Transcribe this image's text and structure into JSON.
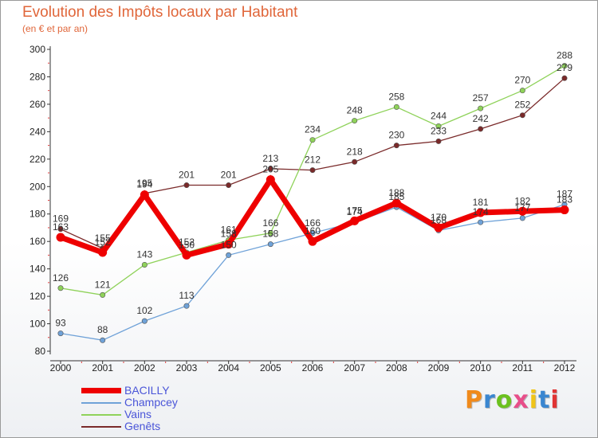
{
  "header": {
    "title": "Evolution des Impôts locaux par Habitant",
    "subtitle": "(en € et par an)"
  },
  "logo": {
    "text": "Proxiti",
    "colors": [
      "#f08a1c",
      "#3a86d0",
      "#6cc11f",
      "#e84e8a",
      "#f0c419",
      "#3a86d0",
      "#e03434"
    ]
  },
  "chart_data": {
    "type": "line",
    "title": "Evolution des Impôts locaux par Habitant",
    "subtitle": "(en € et par an)",
    "xlabel": "",
    "ylabel": "",
    "x": [
      "2000",
      "2001",
      "2002",
      "2003",
      "2004",
      "2005",
      "2006",
      "2007",
      "2008",
      "2009",
      "2010",
      "2011",
      "2012"
    ],
    "ylim": [
      80,
      300
    ],
    "yticks": [
      "80",
      "100",
      "120",
      "140",
      "160",
      "180",
      "200",
      "220",
      "240",
      "260",
      "280",
      "300"
    ],
    "legend_position": "bottom-left",
    "grid": false,
    "series": [
      {
        "name": "BACILLY",
        "color": "#ee0000",
        "values": [
          163,
          152,
          194,
          150,
          158,
          205,
          160,
          175,
          188,
          170,
          181,
          182,
          183
        ],
        "labels": [
          "163",
          "152",
          "194",
          "150",
          "158",
          "205",
          "160",
          "175",
          "188",
          "170",
          "181",
          "182",
          "183"
        ]
      },
      {
        "name": "Champcey",
        "color": "#6fa2d8",
        "values": [
          93,
          88,
          102,
          113,
          150,
          158,
          166,
          174,
          185,
          168,
          174,
          177,
          187
        ],
        "labels": [
          "93",
          "88",
          "102",
          "113",
          "150",
          "158",
          "166",
          "174",
          "185",
          "168",
          "174",
          "177",
          "187"
        ]
      },
      {
        "name": "Vains",
        "color": "#8fd25a",
        "values": [
          126,
          121,
          143,
          152,
          161,
          166,
          234,
          248,
          258,
          244,
          257,
          270,
          288
        ],
        "labels": [
          "126",
          "121",
          "143",
          "152",
          "161",
          "166",
          "234",
          "248",
          "258",
          "244",
          "257",
          "270",
          "288"
        ]
      },
      {
        "name": "Genêts",
        "color": "#7a2a2a",
        "values": [
          169,
          155,
          195,
          201,
          201,
          213,
          212,
          218,
          230,
          233,
          242,
          252,
          279
        ],
        "labels": [
          "169",
          "155",
          "195",
          "201",
          "201",
          "213",
          "212",
          "218",
          "230",
          "233",
          "242",
          "252",
          "279"
        ]
      }
    ]
  }
}
